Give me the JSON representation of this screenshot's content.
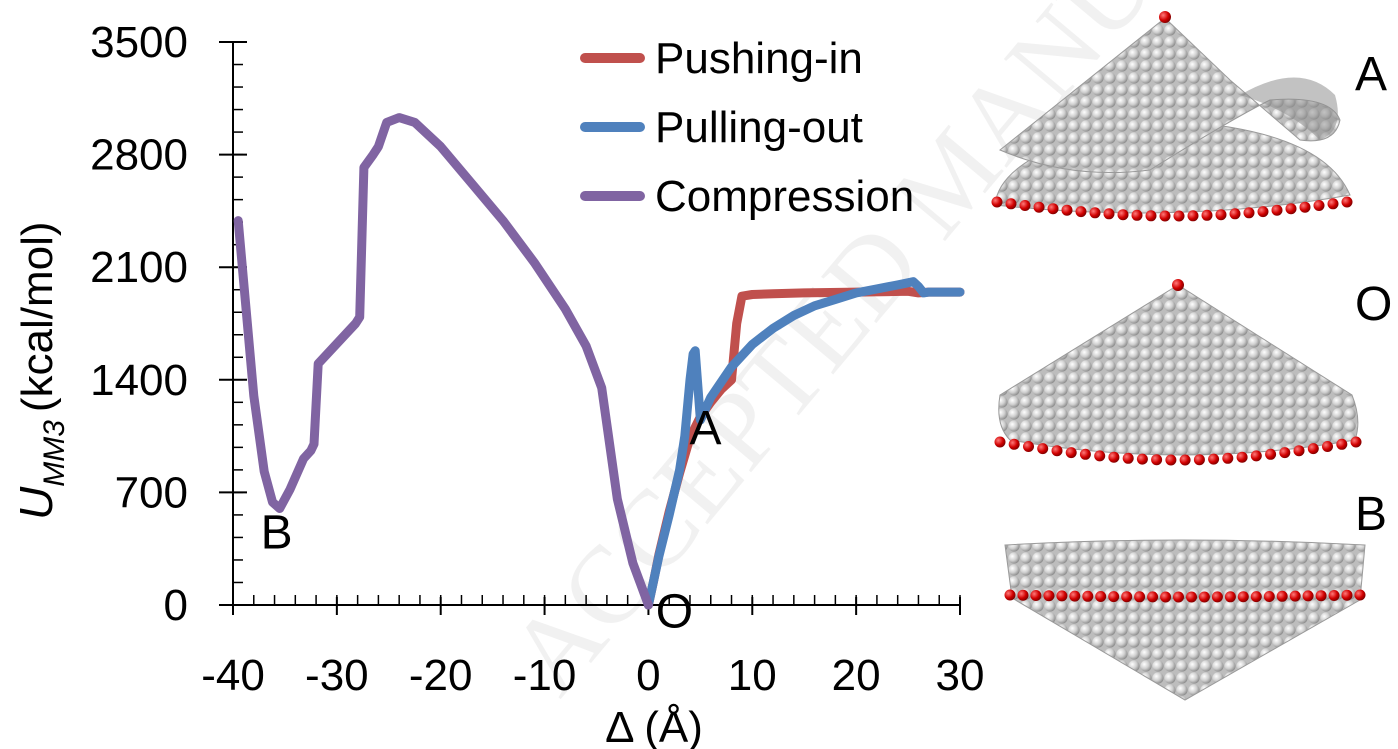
{
  "watermark": "ACCEPTED MANUSCRIPT",
  "chart_data": {
    "type": "line",
    "xlabel": "Δ (Å)",
    "ylabel_main": "U",
    "ylabel_sub": "MM3",
    "ylabel_unit": "(kcal/mol)",
    "xlim": [
      -40,
      30
    ],
    "ylim": [
      0,
      3500
    ],
    "xticks": [
      "-40",
      "-30",
      "-20",
      "-10",
      "0",
      "10",
      "20",
      "30"
    ],
    "xtick_values": [
      -40,
      -30,
      -20,
      -10,
      0,
      10,
      20,
      30
    ],
    "yticks": [
      "0",
      "700",
      "1400",
      "2100",
      "2800",
      "3500"
    ],
    "ytick_values": [
      0,
      700,
      1400,
      2100,
      2800,
      3500
    ],
    "legend_position": "top-right",
    "series": [
      {
        "name": "Pushing-in",
        "color": "#c0504d",
        "x": [
          0,
          0.5,
          1,
          2,
          3,
          4,
          5,
          6,
          7,
          8,
          8.5,
          9,
          10,
          12,
          15,
          20,
          25,
          26,
          27,
          30
        ],
        "y": [
          0,
          150,
          310,
          580,
          820,
          1040,
          1170,
          1260,
          1340,
          1400,
          1750,
          1920,
          1930,
          1935,
          1940,
          1945,
          1950,
          1940,
          1945,
          1945
        ]
      },
      {
        "name": "Pulling-out",
        "color": "#4f81bd",
        "x": [
          0,
          0.5,
          1,
          2,
          3,
          3.5,
          4,
          4.3,
          4.5,
          5,
          6,
          8,
          10,
          12,
          14,
          16,
          18,
          20,
          22,
          24,
          25.5,
          26,
          26.5,
          27,
          30
        ],
        "y": [
          0,
          150,
          300,
          560,
          840,
          1050,
          1400,
          1560,
          1580,
          1150,
          1290,
          1480,
          1620,
          1720,
          1800,
          1860,
          1900,
          1940,
          1965,
          1990,
          2010,
          1980,
          1940,
          1945,
          1945
        ]
      },
      {
        "name": "Compression",
        "color": "#8064a2",
        "x": [
          -39.5,
          -38.8,
          -38,
          -37,
          -36.2,
          -35.5,
          -34.5,
          -33.2,
          -32.5,
          -32.2,
          -31.8,
          -28.2,
          -27.8,
          -27.4,
          -26.5,
          -26,
          -25.2,
          -24,
          -22.5,
          -20,
          -17,
          -14,
          -11,
          -8,
          -6,
          -4.5,
          -3,
          -1.5,
          0
        ],
        "y": [
          2390,
          1880,
          1300,
          830,
          640,
          600,
          720,
          910,
          960,
          1000,
          1500,
          1750,
          1790,
          2720,
          2800,
          2850,
          3000,
          3030,
          3000,
          2850,
          2620,
          2390,
          2130,
          1840,
          1610,
          1350,
          660,
          260,
          0
        ]
      }
    ],
    "annotations": [
      {
        "text": "A",
        "x": 5.5,
        "y": 1000
      },
      {
        "text": "B",
        "x": -35.8,
        "y": 350
      },
      {
        "text": "O",
        "x": 2.5,
        "y": -140
      }
    ]
  },
  "panels": [
    {
      "label": "A",
      "kind": "folded-cone"
    },
    {
      "label": "O",
      "kind": "intact-cone"
    },
    {
      "label": "B",
      "kind": "inverted-cone"
    }
  ]
}
